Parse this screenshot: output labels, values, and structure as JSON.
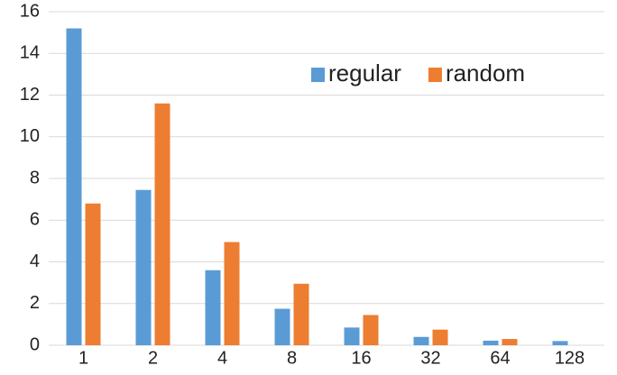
{
  "chart_data": {
    "type": "bar",
    "categories": [
      "1",
      "2",
      "4",
      "8",
      "16",
      "32",
      "64",
      "128"
    ],
    "series": [
      {
        "name": "regular",
        "color": "#5b9bd5",
        "values": [
          15.2,
          7.45,
          3.6,
          1.75,
          0.85,
          0.4,
          0.22,
          0.2
        ]
      },
      {
        "name": "random",
        "color": "#ed7d31",
        "values": [
          6.8,
          11.6,
          4.95,
          2.95,
          1.45,
          0.75,
          0.3,
          null
        ]
      }
    ],
    "ylim": [
      0,
      16
    ],
    "yticks": [
      0,
      2,
      4,
      6,
      8,
      10,
      12,
      14,
      16
    ],
    "grid": true,
    "legend": "upper right"
  }
}
